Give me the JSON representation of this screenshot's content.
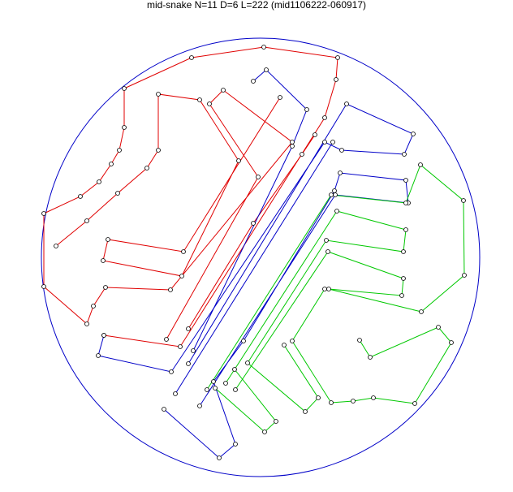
{
  "title": "mid-snake N=11 D=6 L=222 (mid1106222-060917)"
}
